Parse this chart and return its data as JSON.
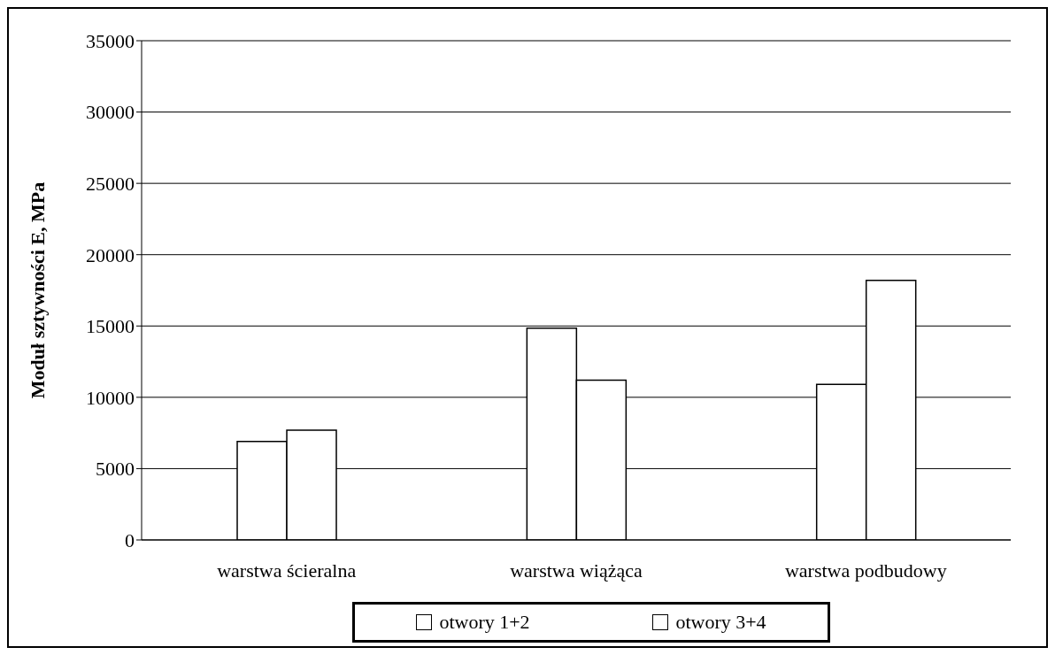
{
  "chart_data": {
    "type": "bar",
    "ylabel": "Moduł sztywności E, MPa",
    "categories": [
      "warstwa ścieralna",
      "warstwa wiążąca",
      "warstwa podbudowy"
    ],
    "series": [
      {
        "name": "otwory 1+2",
        "color": "#ffffff",
        "values": [
          6900,
          14850,
          10900
        ]
      },
      {
        "name": "otwory 3+4",
        "color": "#ffffff",
        "values": [
          7700,
          11200,
          18200
        ]
      }
    ],
    "ylim": [
      0,
      35000
    ],
    "yticks": [
      0,
      5000,
      10000,
      15000,
      20000,
      25000,
      30000,
      35000
    ],
    "grid": "y",
    "legend": "bottom"
  }
}
